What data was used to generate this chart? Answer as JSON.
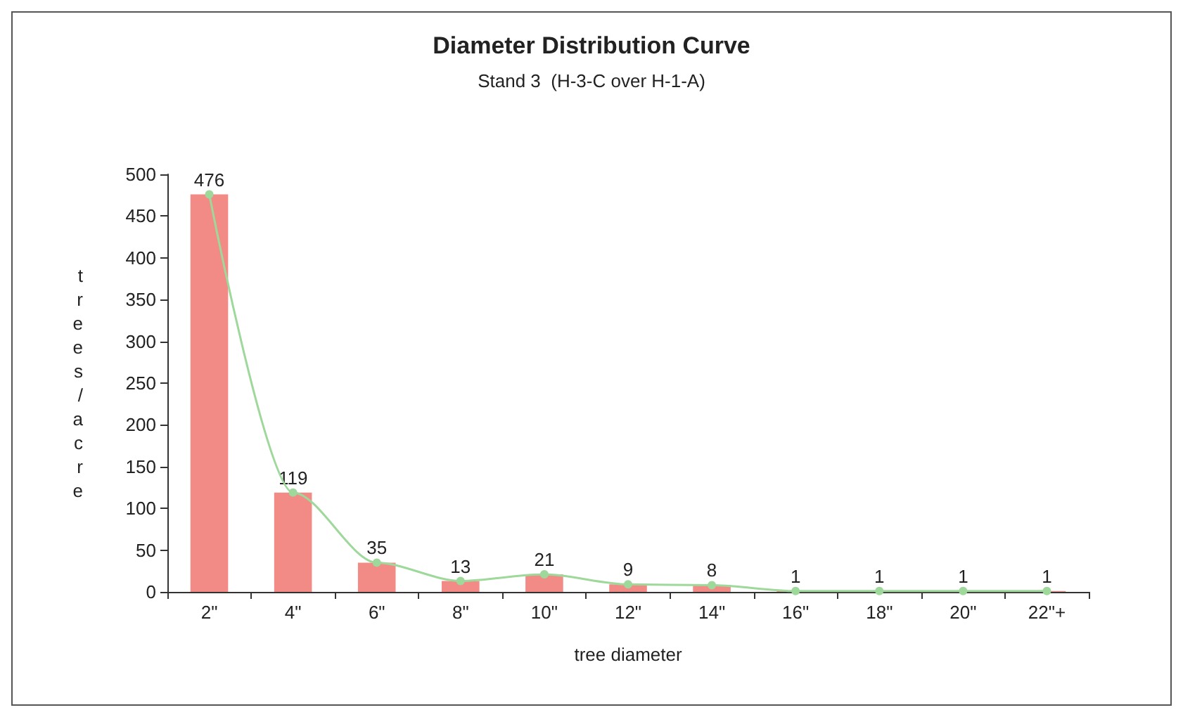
{
  "chart_data": {
    "type": "bar",
    "title": "Diameter Distribution Curve",
    "subtitle": "Stand 3  (H-3-C over H-1-A)",
    "xlabel": "tree diameter",
    "ylabel": "trees/acre",
    "categories": [
      "2\"",
      "4\"",
      "6\"",
      "8\"",
      "10\"",
      "12\"",
      "14\"",
      "16\"",
      "18\"",
      "20\"",
      "22\"+"
    ],
    "series": [
      {
        "color": "#f28b86",
        "values": [
          476,
          119,
          35,
          13,
          21,
          9,
          8,
          1,
          1,
          1,
          1
        ],
        "value_labels": [
          "476",
          "119",
          "35",
          "13",
          "21",
          "9",
          "8",
          "1",
          "1",
          "1",
          "1"
        ]
      },
      {
        "type": "line",
        "color": "#9ed89a",
        "marker": "circle",
        "values": [
          476,
          119,
          35,
          13,
          21,
          9,
          8,
          1,
          1,
          1,
          1
        ]
      }
    ],
    "ylim": [
      0,
      500
    ],
    "yticks": [
      0,
      50,
      100,
      150,
      200,
      250,
      300,
      350,
      400,
      450,
      500
    ],
    "grid": false
  }
}
